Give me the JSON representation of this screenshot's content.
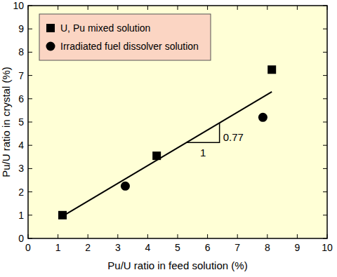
{
  "chart_data": {
    "type": "scatter",
    "x_label": "Pu/U ratio in feed solution (%)",
    "y_label": "Pu/U ratio in crystal (%)",
    "xlim": [
      0,
      10
    ],
    "ylim": [
      0,
      10
    ],
    "xticks": [
      0,
      1,
      2,
      3,
      4,
      5,
      6,
      7,
      8,
      9,
      10
    ],
    "yticks": [
      0,
      1,
      2,
      3,
      4,
      5,
      6,
      7,
      8,
      9,
      10
    ],
    "grid": false,
    "legend": "upper left",
    "series": [
      {
        "name": "U, Pu mixed solution",
        "color": "#000000",
        "marker": "square",
        "x": [
          1.15,
          4.3,
          8.15
        ],
        "values": [
          1.0,
          3.55,
          7.25
        ]
      },
      {
        "name": "Irradiated fuel dissolver solution",
        "color": "#000000",
        "marker": "circle",
        "x": [
          3.25,
          7.85
        ],
        "values": [
          2.25,
          5.2
        ]
      },
      {
        "type": "line",
        "line_style": "solid",
        "color": "#000000",
        "x": [
          1.15,
          8.15
        ],
        "values": [
          0.95,
          6.3
        ]
      }
    ],
    "slope_triangle": {
      "x": [
        5.3,
        6.4
      ],
      "run_label": "1",
      "rise_label": "0.77"
    }
  }
}
